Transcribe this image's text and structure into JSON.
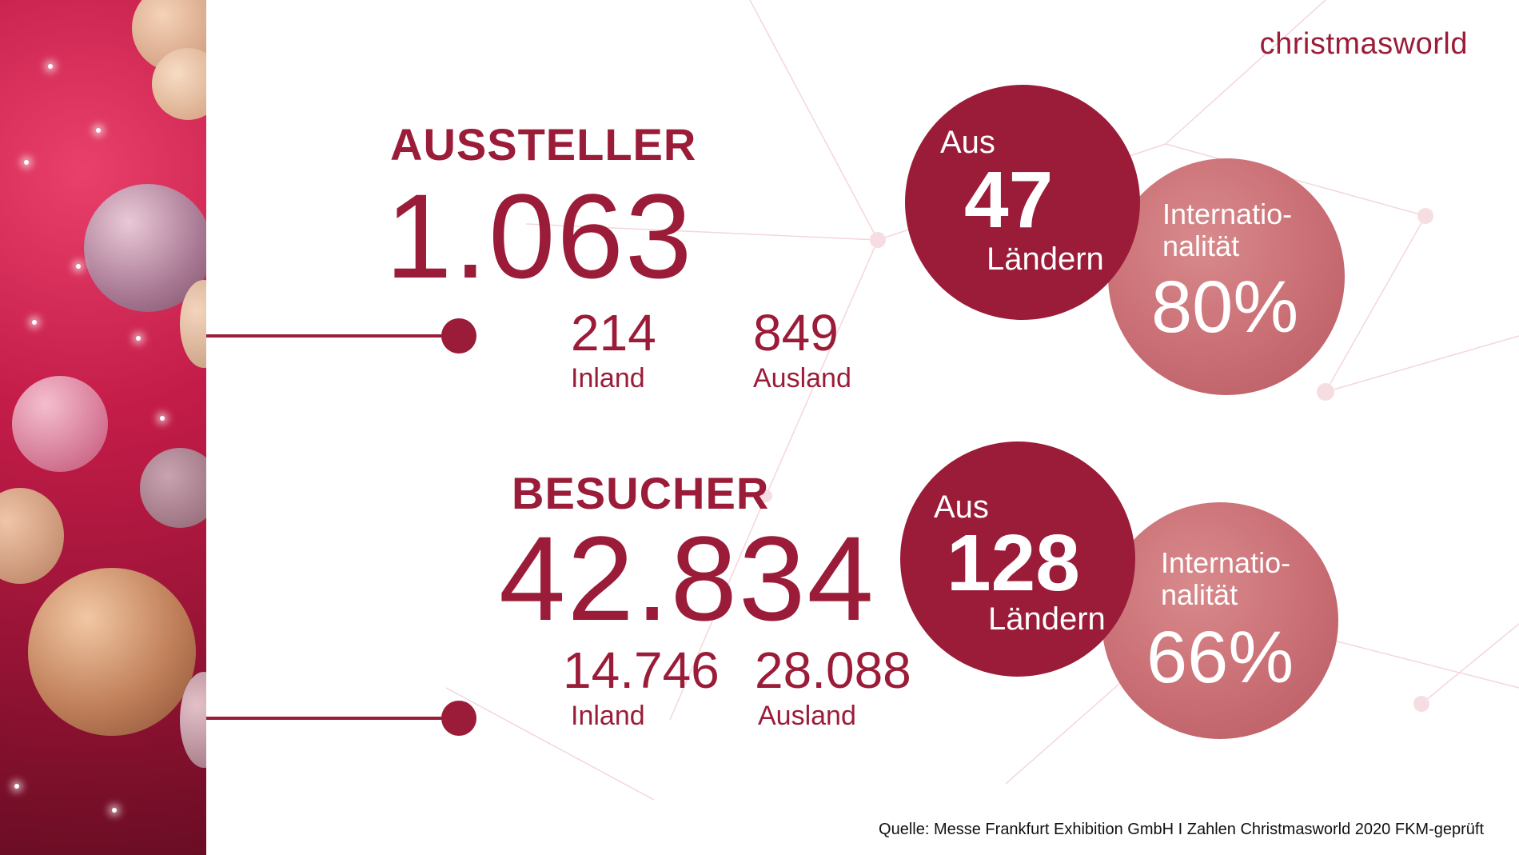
{
  "logo": "christmasworld",
  "exhibitors": {
    "title": "AUSSTELLER",
    "total": "1.063",
    "domestic_value": "214",
    "domestic_label": "Inland",
    "foreign_value": "849",
    "foreign_label": "Ausland",
    "countries_prefix": "Aus",
    "countries_value": "47",
    "countries_suffix": "Ländern",
    "intl_label_line1": "Internatio-",
    "intl_label_line2": "nalität",
    "intl_value": "80%"
  },
  "visitors": {
    "title": "BESUCHER",
    "total": "42.834",
    "domestic_value": "14.746",
    "domestic_label": "Inland",
    "foreign_value": "28.088",
    "foreign_label": "Ausland",
    "countries_prefix": "Aus",
    "countries_value": "128",
    "countries_suffix": "Ländern",
    "intl_label_line1": "Internatio-",
    "intl_label_line2": "nalität",
    "intl_value": "66%"
  },
  "footer": "Quelle: Messe Frankfurt Exhibition GmbH  I  Zahlen Christmasworld 2020 FKM-geprüft",
  "colors": {
    "brand": "#9b1c38",
    "rose": "#c96e74"
  }
}
